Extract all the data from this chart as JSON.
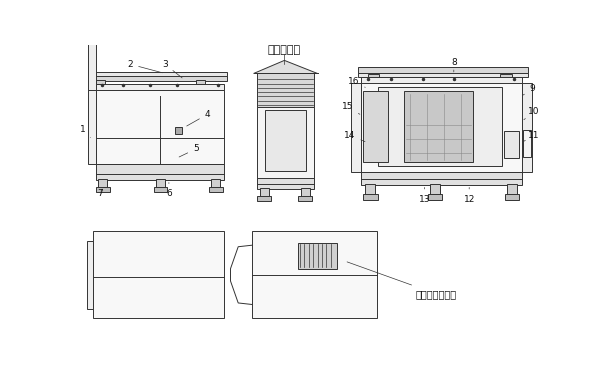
{
  "bg_color": "#ffffff",
  "lc": "#333333",
  "fc_light": "#f0f0f0",
  "fc_mid": "#e0e0e0",
  "fc_dark": "#c8c8c8",
  "fc_body": "#f8f8f8",
  "text_exhaust": "排气百叶窗",
  "text_inlet": "顶部进气百叶窗",
  "lw": 0.7,
  "labels": [
    "1",
    "2",
    "3",
    "4",
    "5",
    "6",
    "7",
    "8",
    "9",
    "10",
    "11",
    "12",
    "13",
    "14",
    "15",
    "16"
  ]
}
